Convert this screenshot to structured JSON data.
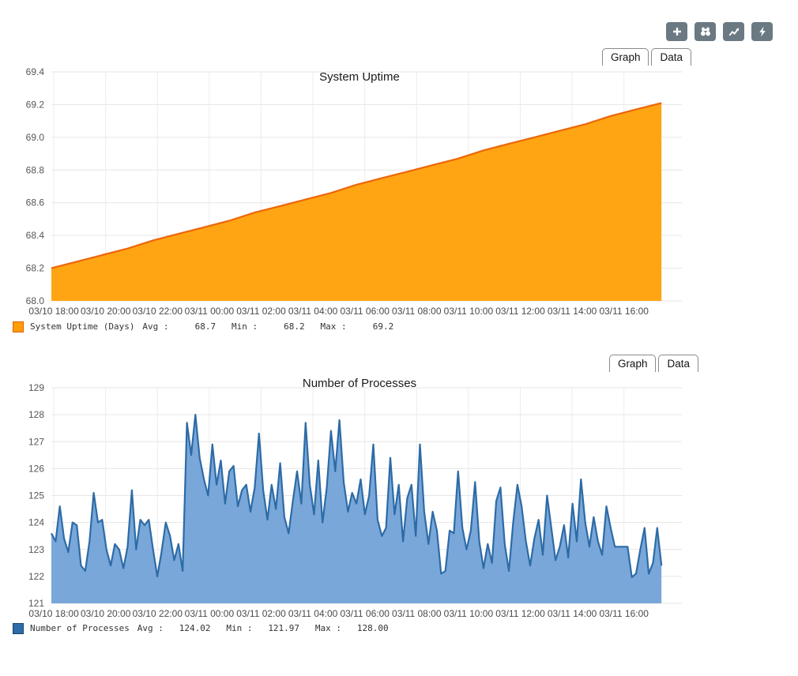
{
  "toolbar": {
    "buttons": [
      {
        "icon": "plus-icon",
        "name": "add"
      },
      {
        "icon": "binoculars-icon",
        "name": "search"
      },
      {
        "icon": "trend-chart-icon",
        "name": "graphs"
      },
      {
        "icon": "lightning-icon",
        "name": "actions"
      }
    ],
    "button_color": "#6b7983"
  },
  "tabs": {
    "graph": "Graph",
    "data": "Data"
  },
  "legend_labels": {
    "avg": "Avg :",
    "min": "Min :",
    "max": "Max :"
  },
  "chart_data": [
    {
      "type": "area",
      "title": "System Uptime",
      "series": [
        {
          "name": "System Uptime (Days)",
          "values": [
            68.2,
            68.24,
            68.28,
            68.32,
            68.37,
            68.41,
            68.45,
            68.49,
            68.54,
            68.58,
            68.62,
            68.66,
            68.71,
            68.75,
            68.79,
            68.83,
            68.87,
            68.92,
            68.96,
            69.0,
            69.04,
            69.08,
            69.13,
            69.17,
            69.21
          ]
        }
      ],
      "x_ticks": [
        "03/10 18:00",
        "03/10 20:00",
        "03/10 22:00",
        "03/11 00:00",
        "03/11 02:00",
        "03/11 04:00",
        "03/11 06:00",
        "03/11 08:00",
        "03/11 10:00",
        "03/11 12:00",
        "03/11 14:00",
        "03/11 16:00"
      ],
      "y_ticks": [
        "68.0",
        "68.2",
        "68.4",
        "68.6",
        "68.8",
        "69.0",
        "69.2",
        "69.4"
      ],
      "ylim": [
        68.0,
        69.4
      ],
      "grid": true,
      "legend_position": "bottom-left",
      "fill_color": "#ffa513",
      "line_color": "#ec6608",
      "swatch_color": "#ff9d09",
      "swatch_border": "#e25f00",
      "stats": {
        "avg": "68.7",
        "min": "68.2",
        "max": "69.2"
      }
    },
    {
      "type": "area",
      "title": "Number of Processes",
      "series": [
        {
          "name": "Number of Processes",
          "values": [
            123.6,
            123.3,
            124.6,
            123.4,
            122.9,
            124.0,
            123.9,
            122.4,
            122.2,
            123.3,
            125.1,
            124.0,
            124.1,
            123.0,
            122.4,
            123.2,
            123.0,
            122.3,
            123.1,
            125.2,
            123.0,
            124.1,
            123.9,
            124.1,
            123.0,
            122.0,
            122.9,
            124.0,
            123.5,
            122.6,
            123.2,
            122.2,
            127.7,
            126.5,
            128.0,
            126.4,
            125.6,
            125.0,
            126.9,
            125.4,
            126.3,
            124.7,
            125.9,
            126.1,
            124.6,
            125.2,
            125.4,
            124.4,
            125.3,
            127.3,
            125.2,
            124.1,
            125.4,
            124.5,
            126.2,
            124.2,
            123.6,
            124.8,
            125.9,
            124.7,
            127.7,
            125.4,
            124.3,
            126.3,
            124.0,
            125.3,
            127.4,
            125.9,
            127.8,
            125.5,
            124.4,
            125.1,
            124.7,
            125.6,
            124.3,
            125.0,
            126.9,
            124.1,
            123.5,
            123.8,
            126.4,
            124.3,
            125.4,
            123.3,
            124.9,
            125.4,
            123.5,
            126.9,
            124.4,
            123.2,
            124.4,
            123.7,
            122.1,
            122.2,
            123.7,
            123.6,
            125.9,
            123.8,
            123.0,
            123.7,
            125.5,
            123.3,
            122.3,
            123.2,
            122.5,
            124.8,
            125.3,
            123.2,
            122.2,
            124.0,
            125.4,
            124.6,
            123.3,
            122.4,
            123.4,
            124.1,
            122.8,
            125.0,
            123.8,
            122.6,
            123.1,
            123.9,
            122.7,
            124.7,
            123.3,
            125.6,
            124.0,
            123.1,
            124.2,
            123.3,
            122.8,
            124.6,
            123.8,
            123.1,
            123.1,
            123.1,
            123.1,
            121.97,
            122.1,
            123.0,
            123.8,
            122.1,
            122.5,
            123.8,
            122.4
          ]
        }
      ],
      "x_ticks": [
        "03/10 18:00",
        "03/10 20:00",
        "03/10 22:00",
        "03/11 00:00",
        "03/11 02:00",
        "03/11 04:00",
        "03/11 06:00",
        "03/11 08:00",
        "03/11 10:00",
        "03/11 12:00",
        "03/11 14:00",
        "03/11 16:00"
      ],
      "y_ticks": [
        "121",
        "122",
        "123",
        "124",
        "125",
        "126",
        "127",
        "128",
        "129"
      ],
      "ylim": [
        121,
        129
      ],
      "grid": true,
      "legend_position": "bottom-left",
      "fill_color": "#79a7d9",
      "line_color": "#2d6ba6",
      "swatch_color": "#2e6ca8",
      "swatch_border": "#16436e",
      "stats": {
        "avg": "124.02",
        "min": "121.97",
        "max": "128.00"
      }
    }
  ]
}
